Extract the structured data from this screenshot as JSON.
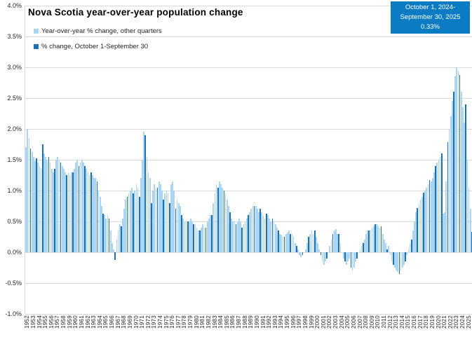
{
  "title": "Nova Scotia year-over-year population change",
  "legend": [
    {
      "label": "Year-over-year % change, other quarters",
      "swatch": "light"
    },
    {
      "label": "% change, October 1-September 30",
      "swatch": "dark"
    }
  ],
  "callout": {
    "lines": [
      "October 1, 2024-",
      "September 30, 2025",
      "0.33%"
    ]
  },
  "colors": {
    "light": "#ABD5F1",
    "dark": "#1C72B0",
    "callout_bg": "#0B7CC4",
    "gridline": "#D9D9D9",
    "tick_text": "#262626"
  },
  "chart_data": {
    "type": "bar",
    "title": "Nova Scotia year-over-year population change",
    "xlabel": "",
    "ylabel": "Year-over-year % change",
    "ylim": [
      -1.0,
      4.0
    ],
    "grid": "horizontal",
    "legend_position": "top-left",
    "y_ticks": [
      {
        "value": 4.0,
        "label": "4.0%"
      },
      {
        "value": 3.5,
        "label": "3.5%"
      },
      {
        "value": 3.0,
        "label": "3.0%"
      },
      {
        "value": 2.5,
        "label": "2.5%"
      },
      {
        "value": 2.0,
        "label": "2.0%"
      },
      {
        "value": 1.5,
        "label": "1.5%"
      },
      {
        "value": 1.0,
        "label": "1.0%"
      },
      {
        "value": 0.5,
        "label": "0.5%"
      },
      {
        "value": 0.0,
        "label": "0.0%"
      },
      {
        "value": -0.5,
        "label": "-0.5%"
      },
      {
        "value": -1.0,
        "label": "-1.0%"
      }
    ],
    "series": [
      {
        "name": "Year-over-year % change, other quarters",
        "color_key": "light",
        "note": "three quarterly observations per year"
      },
      {
        "name": "% change, October 1-September 30",
        "color_key": "dark",
        "note": "one observation per year, drawn as last bar of each year group"
      }
    ],
    "years": [
      {
        "year": "1952",
        "other_quarters": [
          1.7,
          2.0,
          1.85
        ],
        "oct_sep": 1.68
      },
      {
        "year": "1953",
        "other_quarters": [
          1.62,
          1.55,
          1.48
        ],
        "oct_sep": 1.52
      },
      {
        "year": "1954",
        "other_quarters": [
          1.45,
          1.4,
          1.35
        ],
        "oct_sep": 1.75
      },
      {
        "year": "1955",
        "other_quarters": [
          1.6,
          1.55,
          1.5
        ],
        "oct_sep": 1.55
      },
      {
        "year": "1956",
        "other_quarters": [
          1.45,
          1.35,
          1.3
        ],
        "oct_sep": 1.35
      },
      {
        "year": "1957",
        "other_quarters": [
          1.5,
          1.55,
          1.5
        ],
        "oct_sep": 1.45
      },
      {
        "year": "1958",
        "other_quarters": [
          1.4,
          1.35,
          1.3
        ],
        "oct_sep": 1.25
      },
      {
        "year": "1959",
        "other_quarters": [
          1.3,
          1.25,
          1.3
        ],
        "oct_sep": 1.3
      },
      {
        "year": "1960",
        "other_quarters": [
          1.35,
          1.45,
          1.5
        ],
        "oct_sep": 1.4
      },
      {
        "year": "1961",
        "other_quarters": [
          1.45,
          1.5,
          1.45
        ],
        "oct_sep": 1.4
      },
      {
        "year": "1962",
        "other_quarters": [
          1.35,
          1.3,
          1.25
        ],
        "oct_sep": 1.3
      },
      {
        "year": "1963",
        "other_quarters": [
          1.25,
          1.2,
          1.2
        ],
        "oct_sep": 1.15
      },
      {
        "year": "1964",
        "other_quarters": [
          1.0,
          0.9,
          0.75
        ],
        "oct_sep": 0.62
      },
      {
        "year": "1965",
        "other_quarters": [
          0.6,
          0.55,
          0.6
        ],
        "oct_sep": 0.55
      },
      {
        "year": "1966",
        "other_quarters": [
          0.35,
          0.15,
          0.05
        ],
        "oct_sep": -0.12
      },
      {
        "year": "1967",
        "other_quarters": [
          0.2,
          0.35,
          0.45
        ],
        "oct_sep": 0.42
      },
      {
        "year": "1968",
        "other_quarters": [
          0.55,
          0.7,
          0.85
        ],
        "oct_sep": 0.9
      },
      {
        "year": "1969",
        "other_quarters": [
          0.95,
          1.0,
          1.05
        ],
        "oct_sep": 0.95
      },
      {
        "year": "1970",
        "other_quarters": [
          1.0,
          1.1,
          1.05
        ],
        "oct_sep": 0.9
      },
      {
        "year": "1971",
        "other_quarters": [
          1.2,
          1.5,
          1.95
        ],
        "oct_sep": 1.9
      },
      {
        "year": "1972",
        "other_quarters": [
          1.55,
          1.3,
          1.2
        ],
        "oct_sep": 0.8
      },
      {
        "year": "1973",
        "other_quarters": [
          1.0,
          1.1,
          1.05
        ],
        "oct_sep": 1.05
      },
      {
        "year": "1974",
        "other_quarters": [
          1.15,
          1.1,
          1.0
        ],
        "oct_sep": 0.85
      },
      {
        "year": "1975",
        "other_quarters": [
          0.95,
          1.0,
          0.95
        ],
        "oct_sep": 0.8
      },
      {
        "year": "1976",
        "other_quarters": [
          1.1,
          1.15,
          1.0
        ],
        "oct_sep": 0.7
      },
      {
        "year": "1977",
        "other_quarters": [
          0.85,
          0.8,
          0.75
        ],
        "oct_sep": 0.6
      },
      {
        "year": "1978",
        "other_quarters": [
          0.55,
          0.5,
          0.5
        ],
        "oct_sep": 0.5
      },
      {
        "year": "1979",
        "other_quarters": [
          0.5,
          0.55,
          0.5
        ],
        "oct_sep": 0.45
      },
      {
        "year": "1980",
        "other_quarters": [
          0.45,
          0.4,
          0.35
        ],
        "oct_sep": 0.35
      },
      {
        "year": "1981",
        "other_quarters": [
          0.4,
          0.45,
          0.4
        ],
        "oct_sep": 0.4
      },
      {
        "year": "1982",
        "other_quarters": [
          0.5,
          0.55,
          0.6
        ],
        "oct_sep": 0.6
      },
      {
        "year": "1983",
        "other_quarters": [
          0.8,
          0.95,
          1.1
        ],
        "oct_sep": 1.05
      },
      {
        "year": "1984",
        "other_quarters": [
          1.15,
          1.1,
          1.05
        ],
        "oct_sep": 1.0
      },
      {
        "year": "1985",
        "other_quarters": [
          0.95,
          0.85,
          0.75
        ],
        "oct_sep": 0.65
      },
      {
        "year": "1986",
        "other_quarters": [
          0.55,
          0.5,
          0.5
        ],
        "oct_sep": 0.45
      },
      {
        "year": "1987",
        "other_quarters": [
          0.5,
          0.55,
          0.5
        ],
        "oct_sep": 0.4
      },
      {
        "year": "1988",
        "other_quarters": [
          0.45,
          0.5,
          0.55
        ],
        "oct_sep": 0.6
      },
      {
        "year": "1989",
        "other_quarters": [
          0.65,
          0.7,
          0.75
        ],
        "oct_sep": 0.75
      },
      {
        "year": "1990",
        "other_quarters": [
          0.75,
          0.7,
          0.65
        ],
        "oct_sep": 0.7
      },
      {
        "year": "1991",
        "other_quarters": [
          0.65,
          0.6,
          0.55
        ],
        "oct_sep": 0.62
      },
      {
        "year": "1992",
        "other_quarters": [
          0.6,
          0.55,
          0.5
        ],
        "oct_sep": 0.55
      },
      {
        "year": "1993",
        "other_quarters": [
          0.5,
          0.45,
          0.4
        ],
        "oct_sep": 0.35
      },
      {
        "year": "1994",
        "other_quarters": [
          0.3,
          0.28,
          0.25
        ],
        "oct_sep": 0.25
      },
      {
        "year": "1995",
        "other_quarters": [
          0.3,
          0.32,
          0.35
        ],
        "oct_sep": 0.3
      },
      {
        "year": "1996",
        "other_quarters": [
          0.3,
          0.25,
          0.15
        ],
        "oct_sep": 0.1
      },
      {
        "year": "1997",
        "other_quarters": [
          0.05,
          -0.05,
          -0.08
        ],
        "oct_sep": -0.05
      },
      {
        "year": "1998",
        "other_quarters": [
          0.0,
          0.05,
          0.15
        ],
        "oct_sep": 0.25
      },
      {
        "year": "1999",
        "other_quarters": [
          0.3,
          0.35,
          0.3
        ],
        "oct_sep": 0.35
      },
      {
        "year": "2000",
        "other_quarters": [
          0.25,
          0.15,
          0.05
        ],
        "oct_sep": -0.05
      },
      {
        "year": "2001",
        "other_quarters": [
          -0.15,
          -0.2,
          -0.15
        ],
        "oct_sep": -0.1
      },
      {
        "year": "2002",
        "other_quarters": [
          0.0,
          0.1,
          0.2
        ],
        "oct_sep": 0.3
      },
      {
        "year": "2003",
        "other_quarters": [
          0.35,
          0.38,
          0.3
        ],
        "oct_sep": 0.3
      },
      {
        "year": "2004",
        "other_quarters": [
          0.15,
          0.0,
          -0.1
        ],
        "oct_sep": -0.15
      },
      {
        "year": "2005",
        "other_quarters": [
          -0.2,
          -0.15,
          -0.1
        ],
        "oct_sep": -0.25
      },
      {
        "year": "2006",
        "other_quarters": [
          -0.3,
          -0.25,
          -0.15
        ],
        "oct_sep": -0.1
      },
      {
        "year": "2007",
        "other_quarters": [
          0.0,
          0.05,
          0.1
        ],
        "oct_sep": 0.15
      },
      {
        "year": "2008",
        "other_quarters": [
          0.2,
          0.3,
          0.35
        ],
        "oct_sep": 0.35
      },
      {
        "year": "2009",
        "other_quarters": [
          0.35,
          0.4,
          0.42
        ],
        "oct_sep": 0.45
      },
      {
        "year": "2010",
        "other_quarters": [
          0.45,
          0.42,
          0.4
        ],
        "oct_sep": 0.42
      },
      {
        "year": "2011",
        "other_quarters": [
          0.3,
          0.2,
          0.15
        ],
        "oct_sep": 0.05
      },
      {
        "year": "2012",
        "other_quarters": [
          0.1,
          -0.05,
          -0.15
        ],
        "oct_sep": -0.2
      },
      {
        "year": "2013",
        "other_quarters": [
          -0.25,
          -0.3,
          -0.32
        ],
        "oct_sep": -0.35
      },
      {
        "year": "2014",
        "other_quarters": [
          -0.3,
          -0.25,
          -0.2
        ],
        "oct_sep": -0.15
      },
      {
        "year": "2015",
        "other_quarters": [
          -0.05,
          0.05,
          0.15
        ],
        "oct_sep": 0.2
      },
      {
        "year": "2016",
        "other_quarters": [
          0.35,
          0.5,
          0.65
        ],
        "oct_sep": 0.72
      },
      {
        "year": "2017",
        "other_quarters": [
          0.78,
          0.85,
          0.9
        ],
        "oct_sep": 0.97
      },
      {
        "year": "2018",
        "other_quarters": [
          1.0,
          1.05,
          1.1
        ],
        "oct_sep": 1.17
      },
      {
        "year": "2019",
        "other_quarters": [
          1.15,
          1.2,
          1.3
        ],
        "oct_sep": 1.4
      },
      {
        "year": "2020",
        "other_quarters": [
          1.45,
          1.5,
          1.55
        ],
        "oct_sep": 1.6
      },
      {
        "year": "2021",
        "other_quarters": [
          0.62,
          0.65,
          1.15
        ],
        "oct_sep": 1.78
      },
      {
        "year": "2022",
        "other_quarters": [
          2.0,
          2.2,
          2.45
        ],
        "oct_sep": 2.6
      },
      {
        "year": "2023",
        "other_quarters": [
          2.85,
          3.0,
          2.95
        ],
        "oct_sep": 2.87
      },
      {
        "year": "2024",
        "other_quarters": [
          2.6,
          2.35,
          2.1
        ],
        "oct_sep": 2.4
      },
      {
        "year": "2025",
        "other_quarters": [
          1.5,
          1.05,
          0.7
        ],
        "oct_sep": 0.33
      }
    ]
  }
}
